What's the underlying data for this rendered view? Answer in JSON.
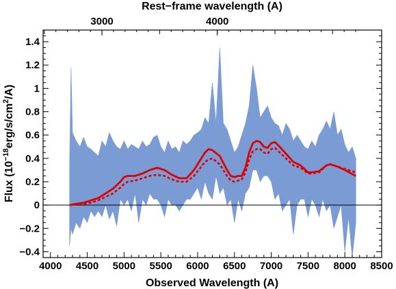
{
  "chart_data": {
    "type": "line",
    "xlabel": "Observed Wavelength (A)",
    "ylabel_parts": [
      "Flux (10",
      "−18",
      "erg/s/cm",
      "2",
      "/A)"
    ],
    "top_xlabel": "Rest−frame wavelength (A)",
    "xlim": [
      3900,
      8500
    ],
    "ylim": [
      -0.45,
      1.5
    ],
    "x_ticks": [
      4000,
      4500,
      5000,
      5500,
      6000,
      6500,
      7000,
      7500,
      8000,
      8500
    ],
    "x_tick_labels": [
      "4000",
      "4500",
      "5000",
      "5500",
      "6000",
      "6500",
      "7000",
      "7500",
      "8000",
      "8500"
    ],
    "y_ticks": [
      -0.4,
      -0.2,
      0,
      0.2,
      0.4,
      0.6,
      0.8,
      1,
      1.2,
      1.4
    ],
    "y_tick_labels": [
      "−0.4",
      "−0.2",
      "0",
      "0.2",
      "0.4",
      "0.6",
      "0.8",
      "1",
      "1.2",
      "1.4"
    ],
    "top_ticks": [
      {
        "observed": 4700,
        "rest": 3000
      },
      {
        "observed": 6267,
        "rest": 4000
      }
    ],
    "top_tick_labels": [
      "3000",
      "4000"
    ],
    "zero_line": 0,
    "series": [
      {
        "style": "noisy-band",
        "color": "#7b9bd4",
        "x": [
          4260,
          4280,
          4300,
          4350,
          4400,
          4450,
          4500,
          4550,
          4600,
          4650,
          4700,
          4750,
          4800,
          4850,
          4900,
          4950,
          5000,
          5050,
          5100,
          5150,
          5200,
          5250,
          5300,
          5350,
          5400,
          5450,
          5500,
          5550,
          5600,
          5650,
          5700,
          5750,
          5800,
          5850,
          5900,
          5950,
          6000,
          6050,
          6100,
          6150,
          6200,
          6250,
          6300,
          6350,
          6400,
          6450,
          6500,
          6550,
          6600,
          6650,
          6700,
          6750,
          6800,
          6850,
          6900,
          6950,
          7000,
          7050,
          7100,
          7150,
          7200,
          7250,
          7300,
          7350,
          7400,
          7450,
          7500,
          7550,
          7600,
          7650,
          7700,
          7750,
          7800,
          7850,
          7900,
          7950,
          8000,
          8050,
          8100,
          8150
        ],
        "upper": [
          0.35,
          1.18,
          0.62,
          0.55,
          0.5,
          0.58,
          0.5,
          0.48,
          0.45,
          0.42,
          0.55,
          0.5,
          0.62,
          0.55,
          0.5,
          0.48,
          0.55,
          0.48,
          0.52,
          0.5,
          0.48,
          0.55,
          0.5,
          0.52,
          0.58,
          0.6,
          0.5,
          0.45,
          0.55,
          0.48,
          0.5,
          0.45,
          0.55,
          0.52,
          0.55,
          0.6,
          0.62,
          0.65,
          0.75,
          0.7,
          1.05,
          0.7,
          1.35,
          0.7,
          0.65,
          0.55,
          0.45,
          0.5,
          0.6,
          0.7,
          0.85,
          1.2,
          1.0,
          0.75,
          0.8,
          0.85,
          0.75,
          0.7,
          0.68,
          0.6,
          0.7,
          0.65,
          0.55,
          0.6,
          0.55,
          0.5,
          0.48,
          0.55,
          0.5,
          0.6,
          0.65,
          0.72,
          0.65,
          0.8,
          0.6,
          0.65,
          0.52,
          0.45,
          0.5,
          0.4
        ],
        "lower": [
          -0.35,
          -0.2,
          -0.25,
          -0.15,
          -0.2,
          -0.1,
          -0.15,
          -0.05,
          -0.1,
          -0.05,
          -0.1,
          0.0,
          -0.12,
          -0.05,
          -0.18,
          0.05,
          0.0,
          0.05,
          -0.05,
          0.1,
          -0.15,
          0.05,
          0.0,
          0.1,
          0.05,
          0.05,
          0.0,
          -0.1,
          0.05,
          0.0,
          0.0,
          -0.05,
          0.0,
          0.05,
          0.05,
          0.1,
          0.15,
          0.05,
          0.2,
          0.1,
          0.05,
          0.25,
          0.1,
          0.15,
          0.0,
          0.05,
          -0.15,
          0.05,
          -0.05,
          0.1,
          0.15,
          0.3,
          0.3,
          0.2,
          0.25,
          0.25,
          0.2,
          0.05,
          0.1,
          -0.05,
          0.0,
          0.05,
          -0.25,
          0.0,
          0.05,
          0.05,
          -0.1,
          0.05,
          0.0,
          -0.1,
          0.05,
          -0.05,
          0.0,
          -0.2,
          -0.1,
          0.0,
          -0.4,
          -0.1,
          -0.45,
          -0.15
        ]
      },
      {
        "style": "solid",
        "color": "#dd0000",
        "x": [
          4260,
          4350,
          4450,
          4550,
          4650,
          4750,
          4850,
          4950,
          5000,
          5050,
          5150,
          5250,
          5350,
          5450,
          5550,
          5650,
          5750,
          5850,
          5950,
          6050,
          6100,
          6150,
          6200,
          6300,
          6400,
          6450,
          6500,
          6550,
          6600,
          6650,
          6700,
          6750,
          6800,
          6850,
          6900,
          6950,
          7000,
          7050,
          7100,
          7200,
          7300,
          7400,
          7500,
          7550,
          7650,
          7750,
          7800,
          7900,
          8000,
          8150
        ],
        "values": [
          0.0,
          0.01,
          0.02,
          0.04,
          0.06,
          0.1,
          0.14,
          0.2,
          0.24,
          0.25,
          0.25,
          0.27,
          0.3,
          0.32,
          0.3,
          0.26,
          0.23,
          0.23,
          0.3,
          0.4,
          0.45,
          0.48,
          0.47,
          0.42,
          0.3,
          0.25,
          0.24,
          0.25,
          0.25,
          0.32,
          0.45,
          0.53,
          0.55,
          0.54,
          0.5,
          0.49,
          0.53,
          0.54,
          0.51,
          0.44,
          0.37,
          0.34,
          0.28,
          0.28,
          0.29,
          0.34,
          0.35,
          0.33,
          0.3,
          0.25
        ]
      },
      {
        "style": "dotted",
        "color": "#dd0000",
        "x": [
          4260,
          4350,
          4450,
          4550,
          4650,
          4750,
          4850,
          4950,
          5000,
          5050,
          5150,
          5250,
          5350,
          5450,
          5550,
          5650,
          5750,
          5850,
          5950,
          6050,
          6100,
          6150,
          6200,
          6300,
          6400,
          6450,
          6500,
          6550,
          6600,
          6650,
          6700,
          6750,
          6800,
          6850,
          6900,
          6950,
          7000,
          7050,
          7100,
          7200,
          7300,
          7400,
          7500,
          7550,
          7650,
          7750,
          7800,
          7900,
          8000,
          8150
        ],
        "values": [
          0.0,
          0.005,
          0.01,
          0.02,
          0.04,
          0.07,
          0.1,
          0.15,
          0.18,
          0.2,
          0.21,
          0.23,
          0.25,
          0.26,
          0.25,
          0.22,
          0.2,
          0.2,
          0.25,
          0.33,
          0.37,
          0.39,
          0.4,
          0.35,
          0.25,
          0.21,
          0.2,
          0.21,
          0.22,
          0.28,
          0.39,
          0.46,
          0.48,
          0.48,
          0.45,
          0.44,
          0.48,
          0.49,
          0.46,
          0.4,
          0.34,
          0.32,
          0.27,
          0.27,
          0.28,
          0.34,
          0.35,
          0.33,
          0.31,
          0.28
        ]
      }
    ]
  }
}
